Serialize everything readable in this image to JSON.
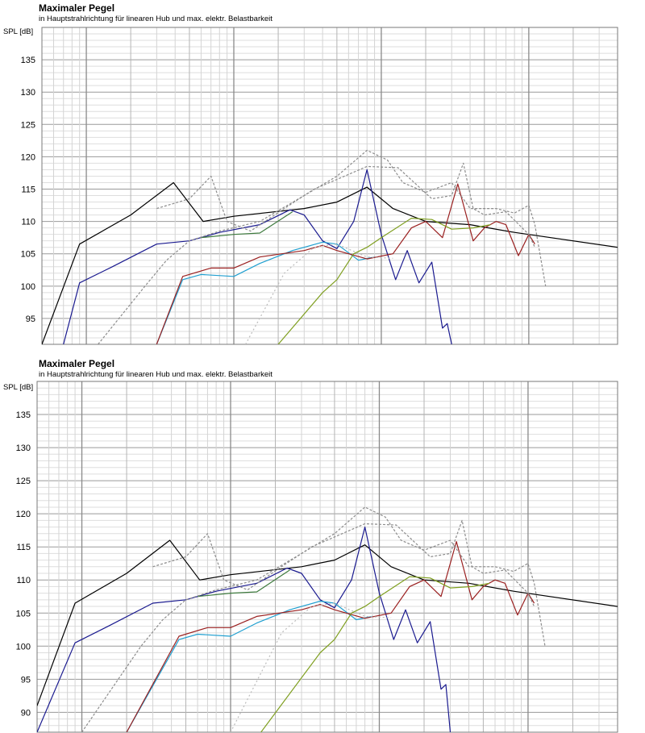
{
  "chart_data": [
    {
      "type": "line",
      "title": "Maximaler Pegel",
      "subtitle": "in Hauptstrahlrichtung für linearen Hub und max. elektr. Belastbarkeit",
      "ylabel": "SPL [dB]",
      "xscale": "log",
      "xlim": [
        5,
        40000
      ],
      "ylim": [
        91,
        140
      ],
      "ytick_values": [
        95,
        100,
        105,
        110,
        115,
        120,
        125,
        130,
        135
      ],
      "ytick_labels": [
        "95",
        "100",
        "105",
        "110",
        "115",
        "120",
        "125",
        "130",
        "135"
      ],
      "grid": true,
      "series": [
        {
          "color": "#000000",
          "dash": "",
          "points": [
            [
              5,
              91
            ],
            [
              9,
              106.5
            ],
            [
              20,
              111
            ],
            [
              39,
              116
            ],
            [
              62,
              110
            ],
            [
              100,
              110.8
            ],
            [
              300,
              112
            ],
            [
              500,
              113
            ],
            [
              800,
              115.3
            ],
            [
              1200,
              112
            ],
            [
              2000,
              110
            ],
            [
              4000,
              109.5
            ],
            [
              8000,
              108.3
            ],
            [
              40000,
              106
            ]
          ]
        },
        {
          "color": "#1a1a8f",
          "dash": "",
          "points": [
            [
              7,
              91
            ],
            [
              9,
              100.5
            ],
            [
              15,
              103
            ],
            [
              30,
              106.5
            ],
            [
              50,
              107
            ],
            [
              80,
              108.3
            ],
            [
              150,
              109.5
            ],
            [
              240,
              111.8
            ],
            [
              300,
              111
            ],
            [
              400,
              107
            ],
            [
              500,
              105.8
            ],
            [
              650,
              110
            ],
            [
              800,
              118
            ],
            [
              1000,
              108
            ],
            [
              1250,
              101
            ],
            [
              1500,
              105.5
            ],
            [
              1800,
              100.5
            ],
            [
              2200,
              103.7
            ],
            [
              2600,
              93.5
            ],
            [
              2800,
              94.2
            ],
            [
              3000,
              91
            ]
          ]
        },
        {
          "color": "#1f9fd0",
          "dash": "",
          "points": [
            [
              30,
              91
            ],
            [
              45,
              101
            ],
            [
              60,
              101.8
            ],
            [
              100,
              101.5
            ],
            [
              150,
              103.5
            ],
            [
              250,
              105.5
            ],
            [
              400,
              106.8
            ],
            [
              500,
              106.5
            ],
            [
              700,
              104
            ],
            [
              900,
              104.5
            ]
          ]
        },
        {
          "color": "#9a2020",
          "dash": "",
          "points": [
            [
              30,
              91
            ],
            [
              45,
              101.5
            ],
            [
              70,
              102.8
            ],
            [
              100,
              102.8
            ],
            [
              150,
              104.5
            ],
            [
              300,
              105.5
            ],
            [
              400,
              106.3
            ],
            [
              500,
              105.5
            ],
            [
              800,
              104.2
            ],
            [
              1200,
              105
            ],
            [
              1600,
              109
            ],
            [
              2000,
              110
            ],
            [
              2600,
              107.5
            ],
            [
              3300,
              115.8
            ],
            [
              4200,
              107
            ],
            [
              5000,
              109
            ],
            [
              6000,
              110
            ],
            [
              7000,
              109.5
            ],
            [
              8500,
              104.7
            ],
            [
              10000,
              108
            ],
            [
              11000,
              106.5
            ]
          ]
        },
        {
          "color": "#7f9f20",
          "dash": "",
          "points": [
            [
              200,
              91
            ],
            [
              400,
              99
            ],
            [
              500,
              101
            ],
            [
              650,
              105
            ],
            [
              800,
              106
            ],
            [
              1000,
              107.5
            ],
            [
              1600,
              110.5
            ],
            [
              2200,
              110.3
            ],
            [
              3000,
              108.8
            ],
            [
              4200,
              109
            ],
            [
              5500,
              109.5
            ]
          ]
        },
        {
          "color": "#3d7a3d",
          "dash": "",
          "points": [
            [
              60,
              107.5
            ],
            [
              100,
              108
            ],
            [
              150,
              108.2
            ],
            [
              250,
              111.5
            ]
          ]
        },
        {
          "color": "#8c8c8c",
          "dash": "3 2",
          "points": [
            [
              12,
              91
            ],
            [
              25,
              100
            ],
            [
              35,
              104
            ],
            [
              50,
              107
            ],
            [
              80,
              108.5
            ],
            [
              150,
              110
            ],
            [
              300,
              114
            ],
            [
              500,
              117
            ],
            [
              800,
              121
            ],
            [
              1100,
              119.5
            ],
            [
              1400,
              116
            ],
            [
              2000,
              114.5
            ],
            [
              3000,
              116
            ],
            [
              4000,
              112
            ],
            [
              6000,
              112
            ],
            [
              8000,
              111.3
            ],
            [
              10000,
              112.5
            ],
            [
              11000,
              109.5
            ],
            [
              13000,
              100
            ]
          ]
        },
        {
          "color": "#8c8c8c",
          "dash": "3 2",
          "points": [
            [
              30,
              112
            ],
            [
              50,
              113.5
            ],
            [
              70,
              117
            ],
            [
              90,
              110
            ],
            [
              130,
              108.5
            ],
            [
              220,
              112
            ],
            [
              350,
              115
            ],
            [
              500,
              116.5
            ],
            [
              800,
              118.5
            ],
            [
              1300,
              118.3
            ],
            [
              2200,
              113.5
            ],
            [
              3000,
              114
            ],
            [
              3600,
              119
            ],
            [
              4200,
              112
            ],
            [
              5000,
              111
            ],
            [
              7000,
              111.5
            ],
            [
              10000,
              108
            ],
            [
              11000,
              106
            ]
          ]
        },
        {
          "color": "#bbbbbb",
          "dash": "2 3",
          "points": [
            [
              120,
              91
            ],
            [
              220,
              102
            ],
            [
              350,
              106
            ],
            [
              500,
              106.5
            ],
            [
              800,
              104.5
            ],
            [
              1200,
              104.3
            ]
          ]
        }
      ]
    },
    {
      "type": "line",
      "title": "Maximaler Pegel",
      "subtitle": "in Hauptstrahlrichtung für linearen Hub und max. elektr. Belastbarkeit",
      "ylabel": "SPL [dB]",
      "xscale": "log",
      "xlim": [
        5,
        40000
      ],
      "ylim": [
        87,
        140
      ],
      "ytick_values": [
        90,
        95,
        100,
        105,
        110,
        115,
        120,
        125,
        130,
        135
      ],
      "ytick_labels": [
        "90",
        "95",
        "100",
        "105",
        "110",
        "115",
        "120",
        "125",
        "130",
        "135"
      ],
      "grid": true,
      "series": [
        {
          "color": "#000000",
          "dash": "",
          "points": [
            [
              5,
              91
            ],
            [
              9,
              106.5
            ],
            [
              20,
              111
            ],
            [
              39,
              116
            ],
            [
              62,
              110
            ],
            [
              100,
              110.8
            ],
            [
              300,
              112
            ],
            [
              500,
              113
            ],
            [
              800,
              115.3
            ],
            [
              1200,
              112
            ],
            [
              2000,
              110
            ],
            [
              4000,
              109.5
            ],
            [
              8000,
              108.3
            ],
            [
              40000,
              106
            ]
          ]
        },
        {
          "color": "#1a1a8f",
          "dash": "",
          "points": [
            [
              5,
              87
            ],
            [
              9,
              100.5
            ],
            [
              15,
              103
            ],
            [
              30,
              106.5
            ],
            [
              50,
              107
            ],
            [
              80,
              108.3
            ],
            [
              150,
              109.5
            ],
            [
              240,
              111.8
            ],
            [
              300,
              111
            ],
            [
              400,
              107
            ],
            [
              500,
              105.8
            ],
            [
              650,
              110
            ],
            [
              800,
              118
            ],
            [
              1000,
              108
            ],
            [
              1250,
              101
            ],
            [
              1500,
              105.5
            ],
            [
              1800,
              100.5
            ],
            [
              2200,
              103.7
            ],
            [
              2600,
              93.5
            ],
            [
              2800,
              94.2
            ],
            [
              3000,
              87
            ]
          ]
        },
        {
          "color": "#1f9fd0",
          "dash": "",
          "points": [
            [
              20,
              87
            ],
            [
              45,
              101
            ],
            [
              60,
              101.8
            ],
            [
              100,
              101.5
            ],
            [
              150,
              103.5
            ],
            [
              250,
              105.5
            ],
            [
              400,
              106.8
            ],
            [
              500,
              106.5
            ],
            [
              700,
              104
            ],
            [
              900,
              104.5
            ]
          ]
        },
        {
          "color": "#9a2020",
          "dash": "",
          "points": [
            [
              20,
              87
            ],
            [
              45,
              101.5
            ],
            [
              70,
              102.8
            ],
            [
              100,
              102.8
            ],
            [
              150,
              104.5
            ],
            [
              300,
              105.5
            ],
            [
              400,
              106.3
            ],
            [
              500,
              105.5
            ],
            [
              800,
              104.2
            ],
            [
              1200,
              105
            ],
            [
              1600,
              109
            ],
            [
              2000,
              110
            ],
            [
              2600,
              107.5
            ],
            [
              3300,
              115.8
            ],
            [
              4200,
              107
            ],
            [
              5000,
              109
            ],
            [
              6000,
              110
            ],
            [
              7000,
              109.5
            ],
            [
              8500,
              104.7
            ],
            [
              10000,
              108
            ],
            [
              11000,
              106.5
            ]
          ]
        },
        {
          "color": "#7f9f20",
          "dash": "",
          "points": [
            [
              160,
              87
            ],
            [
              400,
              99
            ],
            [
              500,
              101
            ],
            [
              650,
              105
            ],
            [
              800,
              106
            ],
            [
              1000,
              107.5
            ],
            [
              1600,
              110.5
            ],
            [
              2200,
              110.3
            ],
            [
              3000,
              108.8
            ],
            [
              4200,
              109
            ],
            [
              5500,
              109.5
            ]
          ]
        },
        {
          "color": "#3d7a3d",
          "dash": "",
          "points": [
            [
              60,
              107.5
            ],
            [
              100,
              108
            ],
            [
              150,
              108.2
            ],
            [
              250,
              111.5
            ]
          ]
        },
        {
          "color": "#8c8c8c",
          "dash": "3 2",
          "points": [
            [
              10,
              87
            ],
            [
              25,
              100
            ],
            [
              35,
              104
            ],
            [
              50,
              107
            ],
            [
              80,
              108.5
            ],
            [
              150,
              110
            ],
            [
              300,
              114
            ],
            [
              500,
              117
            ],
            [
              800,
              121
            ],
            [
              1100,
              119.5
            ],
            [
              1400,
              116
            ],
            [
              2000,
              114.5
            ],
            [
              3000,
              116
            ],
            [
              4000,
              112
            ],
            [
              6000,
              112
            ],
            [
              8000,
              111.3
            ],
            [
              10000,
              112.5
            ],
            [
              11000,
              109.5
            ],
            [
              13000,
              100
            ]
          ]
        },
        {
          "color": "#8c8c8c",
          "dash": "3 2",
          "points": [
            [
              30,
              112
            ],
            [
              50,
              113.5
            ],
            [
              70,
              117
            ],
            [
              90,
              110
            ],
            [
              130,
              108.5
            ],
            [
              220,
              112
            ],
            [
              350,
              115
            ],
            [
              500,
              116.5
            ],
            [
              800,
              118.5
            ],
            [
              1300,
              118.3
            ],
            [
              2200,
              113.5
            ],
            [
              3000,
              114
            ],
            [
              3600,
              119
            ],
            [
              4200,
              112
            ],
            [
              5000,
              111
            ],
            [
              7000,
              111.5
            ],
            [
              10000,
              108
            ],
            [
              11000,
              106
            ]
          ]
        },
        {
          "color": "#bbbbbb",
          "dash": "2 3",
          "points": [
            [
              100,
              87
            ],
            [
              220,
              102
            ],
            [
              350,
              106
            ],
            [
              500,
              106.5
            ],
            [
              800,
              104.5
            ],
            [
              1200,
              104.3
            ]
          ]
        }
      ]
    }
  ]
}
